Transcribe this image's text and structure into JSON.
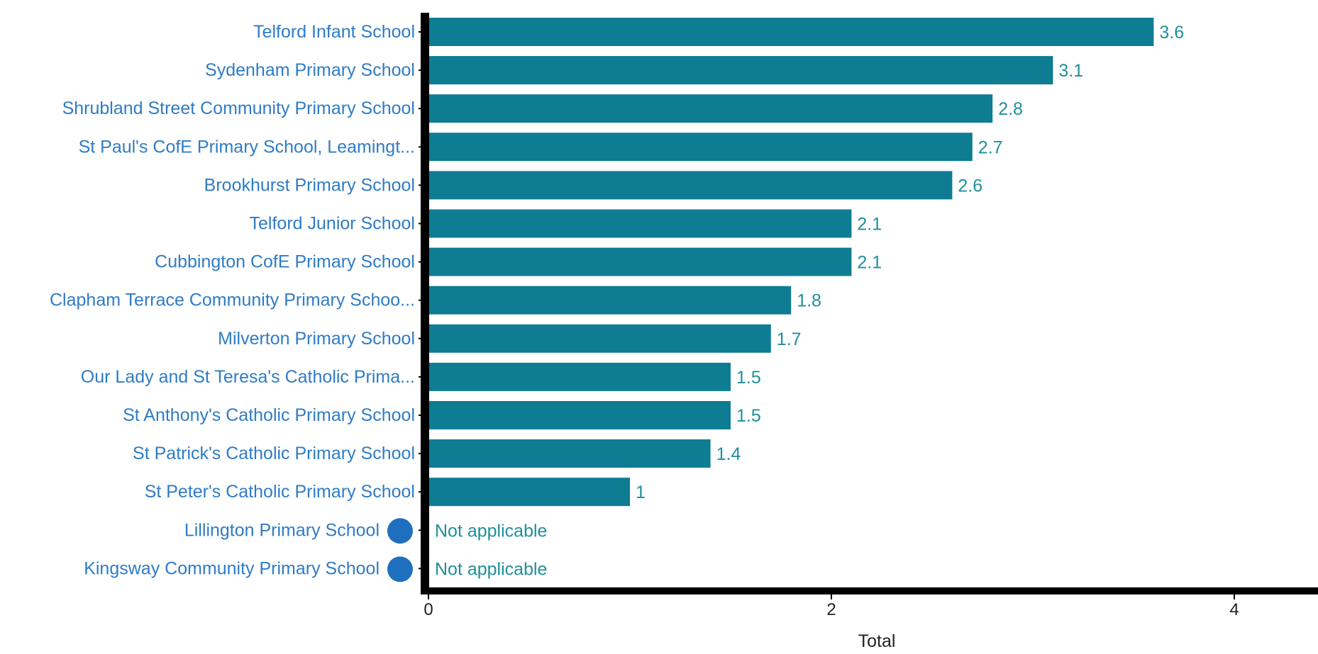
{
  "chart_data": {
    "type": "bar",
    "orientation": "horizontal",
    "categories": [
      "Telford Infant School",
      "Sydenham Primary School",
      "Shrubland Street Community Primary School",
      "St Paul's CofE Primary School, Leamingt...",
      "Brookhurst Primary School",
      "Telford Junior School",
      "Cubbington CofE Primary School",
      "Clapham Terrace Community Primary Schoo...",
      "Milverton Primary School",
      "Our Lady and St Teresa's Catholic Prima...",
      "St Anthony's Catholic Primary School",
      "St Patrick's Catholic Primary School",
      "St Peter's Catholic Primary School",
      "Lillington Primary School",
      "Kingsway Community Primary School"
    ],
    "values": [
      3.6,
      3.1,
      2.8,
      2.7,
      2.6,
      2.1,
      2.1,
      1.8,
      1.7,
      1.5,
      1.5,
      1.4,
      1,
      null,
      null
    ],
    "value_labels": [
      "3.6",
      "3.1",
      "2.8",
      "2.7",
      "2.6",
      "2.1",
      "2.1",
      "1.8",
      "1.7",
      "1.5",
      "1.5",
      "1.4",
      "1",
      "Not applicable",
      "Not applicable"
    ],
    "highlighted": [
      false,
      false,
      false,
      false,
      false,
      false,
      false,
      false,
      false,
      false,
      false,
      false,
      false,
      true,
      true
    ],
    "xlabel": "Total",
    "ylabel": "",
    "xlim": [
      0,
      4.4
    ],
    "xticks": [
      0,
      2,
      4
    ],
    "grid": false,
    "colors": {
      "bar": "#0e7c93",
      "category_label": "#2f7cc5",
      "value_label": "#1f8f9b",
      "marker": "#1f6fbf",
      "axis": "#000000",
      "tick_label": "#222222"
    }
  }
}
